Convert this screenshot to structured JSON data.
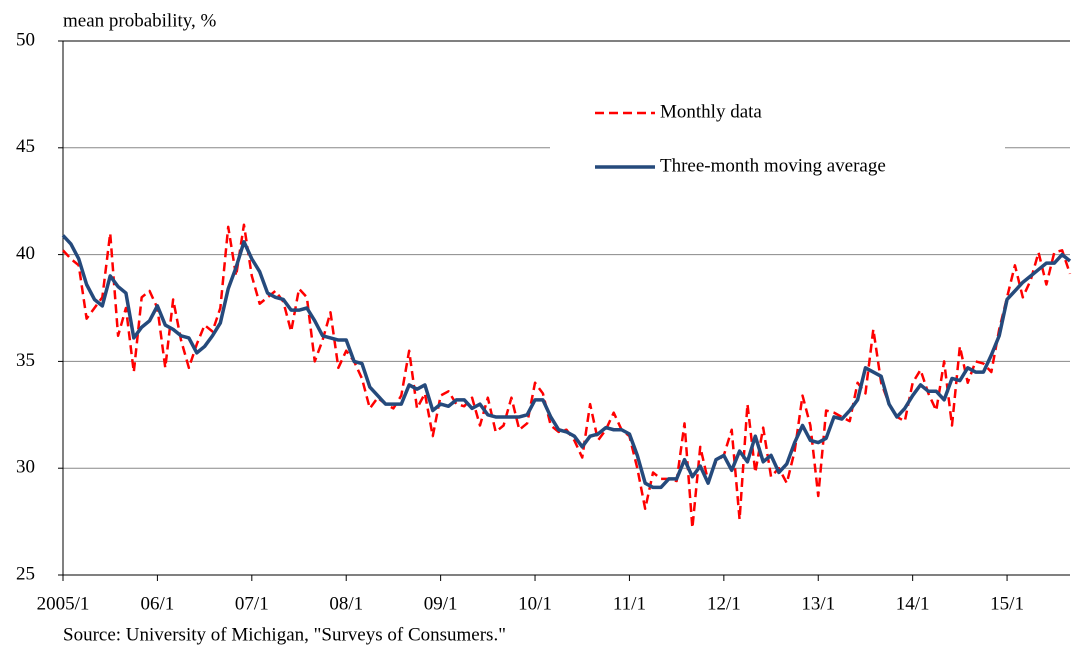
{
  "chart_data": {
    "type": "line",
    "y_label": "mean probability, %",
    "source": "Source: University of Michigan, \"Surveys of Consumers.\"",
    "categories": [
      "2005/1",
      null,
      null,
      null,
      null,
      null,
      null,
      null,
      null,
      null,
      null,
      null,
      "06/1",
      null,
      null,
      null,
      null,
      null,
      null,
      null,
      null,
      null,
      null,
      null,
      "07/1",
      null,
      null,
      null,
      null,
      null,
      null,
      null,
      null,
      null,
      null,
      null,
      "08/1",
      null,
      null,
      null,
      null,
      null,
      null,
      null,
      null,
      null,
      null,
      null,
      "09/1",
      null,
      null,
      null,
      null,
      null,
      null,
      null,
      null,
      null,
      null,
      null,
      "10/1",
      null,
      null,
      null,
      null,
      null,
      null,
      null,
      null,
      null,
      null,
      null,
      "11/1",
      null,
      null,
      null,
      null,
      null,
      null,
      null,
      null,
      null,
      null,
      null,
      "12/1",
      null,
      null,
      null,
      null,
      null,
      null,
      null,
      null,
      null,
      null,
      null,
      "13/1",
      null,
      null,
      null,
      null,
      null,
      null,
      null,
      null,
      null,
      null,
      null,
      "14/1",
      null,
      null,
      null,
      null,
      null,
      null,
      null,
      null,
      null,
      null,
      null,
      "15/1",
      null,
      null,
      null,
      null,
      null,
      null,
      null,
      null
    ],
    "series": [
      {
        "name": "Monthly data",
        "color": "#ff0000",
        "dashed": true,
        "values": [
          40.2,
          39.8,
          39.5,
          37.0,
          37.5,
          38.0,
          41.0,
          36.2,
          37.5,
          34.5,
          38.0,
          38.3,
          37.5,
          34.7,
          37.9,
          36.0,
          34.7,
          35.8,
          36.7,
          36.4,
          37.5,
          41.3,
          39.0,
          41.4,
          39.0,
          37.7,
          38.0,
          38.3,
          37.8,
          36.4,
          38.4,
          38.0,
          35.0,
          36.0,
          37.3,
          34.7,
          35.5,
          35.0,
          34.2,
          32.8,
          33.3,
          33.0,
          32.8,
          33.4,
          35.5,
          32.8,
          33.5,
          31.5,
          33.4,
          33.6,
          33.0,
          32.9,
          33.3,
          32.0,
          33.3,
          31.7,
          32.0,
          33.3,
          31.8,
          32.1,
          34.0,
          33.5,
          32.0,
          31.7,
          31.8,
          31.3,
          30.5,
          33.0,
          31.3,
          31.8,
          32.6,
          31.8,
          31.5,
          30.0,
          28.1,
          29.8,
          29.5,
          29.5,
          29.4,
          32.1,
          27.2,
          31.0,
          29.4,
          30.3,
          30.6,
          31.8,
          27.6,
          33.0,
          29.8,
          31.9,
          29.6,
          30.0,
          29.3,
          30.8,
          33.4,
          32.0,
          28.7,
          32.7,
          32.6,
          32.4,
          32.2,
          34.0,
          33.5,
          36.5,
          34.0,
          33.0,
          32.4,
          32.2,
          34.0,
          34.6,
          33.5,
          32.7,
          35.0,
          32.0,
          35.7,
          34.0,
          35.0,
          34.9,
          34.5,
          36.5,
          38.0,
          39.5,
          38.0,
          38.8,
          40.1,
          38.6,
          40.1,
          40.2,
          39.1
        ]
      },
      {
        "name": "Three-month moving average",
        "color": "#254a7c",
        "dashed": false,
        "values": [
          40.9,
          40.5,
          39.8,
          38.6,
          37.9,
          37.6,
          39.0,
          38.5,
          38.2,
          36.1,
          36.6,
          36.9,
          37.6,
          36.7,
          36.5,
          36.2,
          36.1,
          35.4,
          35.7,
          36.2,
          36.8,
          38.4,
          39.4,
          40.6,
          39.8,
          39.2,
          38.2,
          38.0,
          37.9,
          37.4,
          37.4,
          37.5,
          36.9,
          36.2,
          36.1,
          36.0,
          36.0,
          35.0,
          34.9,
          33.8,
          33.4,
          33.0,
          33.0,
          33.0,
          33.9,
          33.7,
          33.9,
          32.7,
          33.0,
          32.9,
          33.2,
          33.2,
          32.8,
          33.0,
          32.5,
          32.4,
          32.4,
          32.4,
          32.4,
          32.5,
          33.2,
          33.2,
          32.4,
          31.8,
          31.7,
          31.5,
          31.0,
          31.5,
          31.6,
          31.9,
          31.8,
          31.8,
          31.6,
          30.6,
          29.3,
          29.1,
          29.1,
          29.5,
          29.5,
          30.4,
          29.6,
          30.1,
          29.3,
          30.4,
          30.6,
          29.9,
          30.8,
          30.3,
          31.5,
          30.3,
          30.6,
          29.8,
          30.2,
          31.2,
          32.0,
          31.3,
          31.2,
          31.4,
          32.4,
          32.3,
          32.7,
          33.2,
          34.7,
          34.5,
          34.3,
          33.0,
          32.4,
          32.8,
          33.4,
          33.9,
          33.6,
          33.6,
          33.2,
          34.2,
          34.1,
          34.7,
          34.5,
          34.5,
          35.3,
          36.2,
          37.9,
          38.3,
          38.7,
          39.0,
          39.3,
          39.6,
          39.6,
          40.0,
          39.7
        ]
      }
    ],
    "ylim": [
      25,
      50
    ],
    "yticks": [
      25,
      30,
      35,
      40,
      45,
      50
    ],
    "grid": true,
    "legend": "upper right"
  }
}
